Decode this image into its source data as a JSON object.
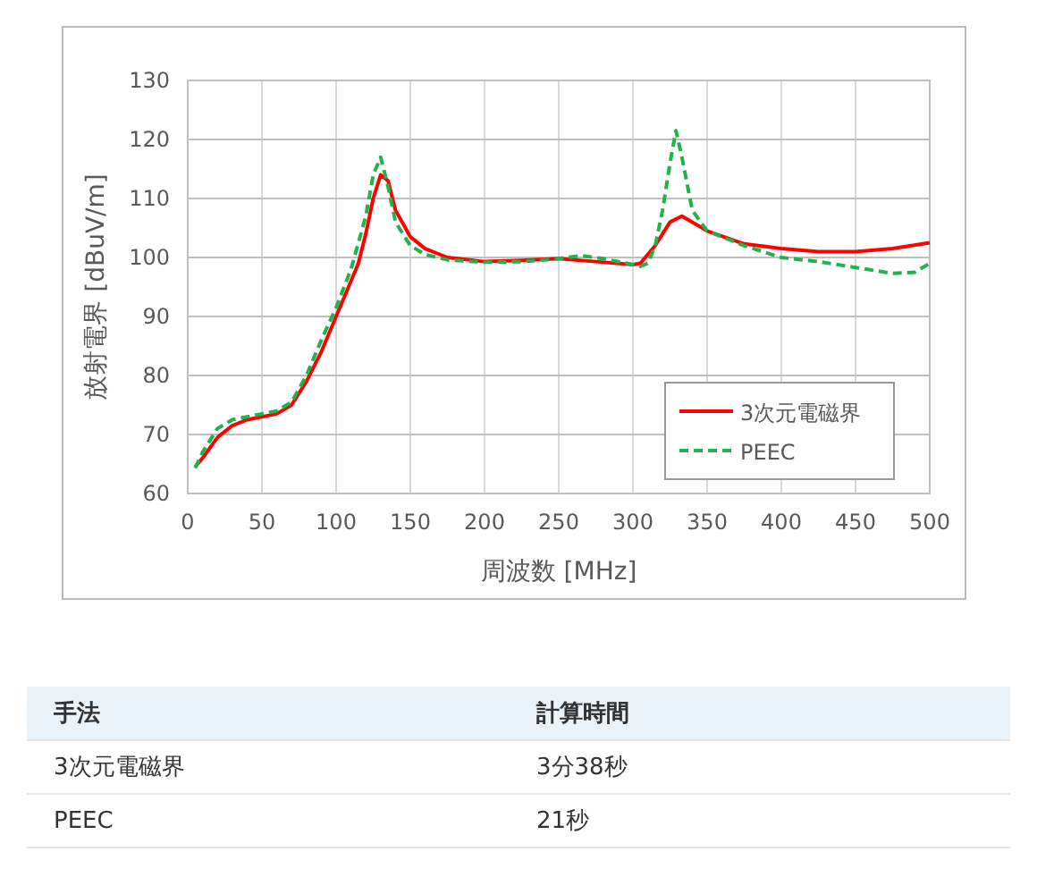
{
  "chart_data": {
    "type": "line",
    "xlabel": "周波数 [MHz]",
    "ylabel": "放射電界 [dBuV/m]",
    "xlim": [
      0,
      500
    ],
    "xticks": [
      0,
      50,
      100,
      150,
      200,
      250,
      300,
      350,
      400,
      450,
      500
    ],
    "ylim": [
      60,
      130
    ],
    "yticks": [
      60,
      70,
      80,
      90,
      100,
      110,
      120,
      130
    ],
    "grid": true,
    "legend": "bottom right",
    "series": [
      {
        "name": "3次元電磁界",
        "color": "#ff0000",
        "line_style": "solid",
        "x": [
          5,
          10,
          20,
          30,
          40,
          50,
          60,
          70,
          80,
          90,
          100,
          110,
          115,
          120,
          125,
          130,
          135,
          140,
          150,
          160,
          175,
          200,
          225,
          250,
          275,
          300,
          305,
          315,
          325,
          333,
          340,
          350,
          375,
          400,
          425,
          450,
          475,
          500
        ],
        "values": [
          64.5,
          66,
          69.5,
          71.5,
          72.5,
          73,
          73.5,
          75,
          79,
          84,
          90,
          96,
          99,
          104,
          110,
          114,
          113,
          108,
          103.5,
          101.5,
          100,
          99.3,
          99.5,
          99.8,
          99.3,
          98.8,
          99,
          102,
          106,
          107,
          106,
          104.5,
          102.3,
          101.5,
          101,
          101,
          101.5,
          102.5
        ]
      },
      {
        "name": "PEEC",
        "color": "#22b14c",
        "line_style": "dashed",
        "x": [
          5,
          10,
          20,
          30,
          40,
          50,
          60,
          70,
          80,
          90,
          100,
          110,
          120,
          125,
          130,
          135,
          140,
          150,
          160,
          175,
          200,
          225,
          250,
          265,
          280,
          300,
          305,
          310,
          315,
          320,
          325,
          329,
          333,
          340,
          350,
          375,
          400,
          425,
          450,
          475,
          490,
          500
        ],
        "values": [
          64.3,
          67,
          71,
          72.5,
          73,
          73.5,
          74,
          75.5,
          80,
          86,
          91.5,
          98,
          107,
          114,
          117,
          112,
          106,
          102,
          100.5,
          99.6,
          99.2,
          99.3,
          99.8,
          100.3,
          99.8,
          98.8,
          98.5,
          99,
          102,
          108,
          116,
          121.5,
          117,
          108,
          104.5,
          102,
          100,
          99.3,
          98.3,
          97.3,
          97.5,
          99
        ]
      }
    ],
    "annotations": [
      "手法",
      "計算時間",
      "3次元電磁界",
      "3分38秒",
      "PEEC",
      "21秒"
    ]
  }
}
